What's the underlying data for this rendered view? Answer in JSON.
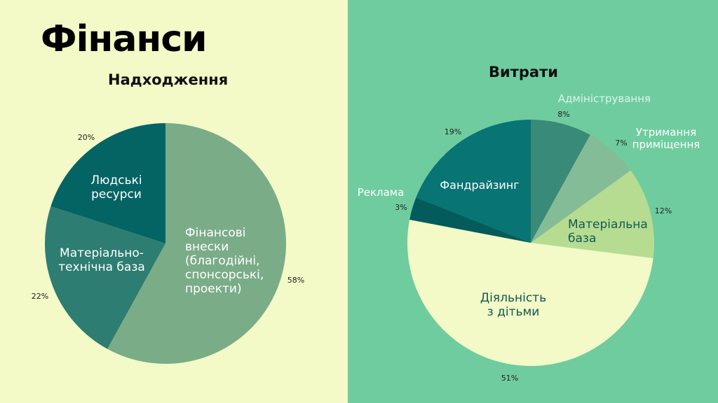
{
  "page_title": "Фінанси",
  "colors": {
    "left_bg": "#f3f9c7",
    "right_bg": "#6fcc9f"
  },
  "chart_data": [
    {
      "type": "pie",
      "title": "Надходження",
      "slices": [
        {
          "label": "Фінансові внески (благодійні, спонсорські, проекти)",
          "value": 58,
          "value_label": "58%",
          "color": "#7aac88",
          "label_color": "#ffffff"
        },
        {
          "label": "Матеріально-технічна база",
          "value": 22,
          "value_label": "22%",
          "color": "#2d7d72",
          "label_color": "#ffffff"
        },
        {
          "label": "Людські ресурси",
          "value": 20,
          "value_label": "20%",
          "color": "#046464",
          "label_color": "#ffffff"
        }
      ]
    },
    {
      "type": "pie",
      "title": "Витрати",
      "slices": [
        {
          "label": "Адміністрування",
          "value": 8,
          "value_label": "8%",
          "color": "#3a8a78",
          "label_color": "#d8f5ea"
        },
        {
          "label": "Утримання приміщення",
          "value": 7,
          "value_label": "7%",
          "color": "#85bc98",
          "label_color": "#ffffff"
        },
        {
          "label": "Матеріальна база",
          "value": 12,
          "value_label": "12%",
          "color": "#b6dc92",
          "label_color": "#125a50"
        },
        {
          "label": "Діяльність з дітьми",
          "value": 51,
          "value_label": "51%",
          "color": "#f3f9c7",
          "label_color": "#125a50"
        },
        {
          "label": "Реклама",
          "value": 3,
          "value_label": "3%",
          "color": "#035b5b",
          "label_color": "#ffffff"
        },
        {
          "label": "Фандрайзинг",
          "value": 19,
          "value_label": "19%",
          "color": "#087474",
          "label_color": "#ffffff"
        }
      ]
    }
  ]
}
